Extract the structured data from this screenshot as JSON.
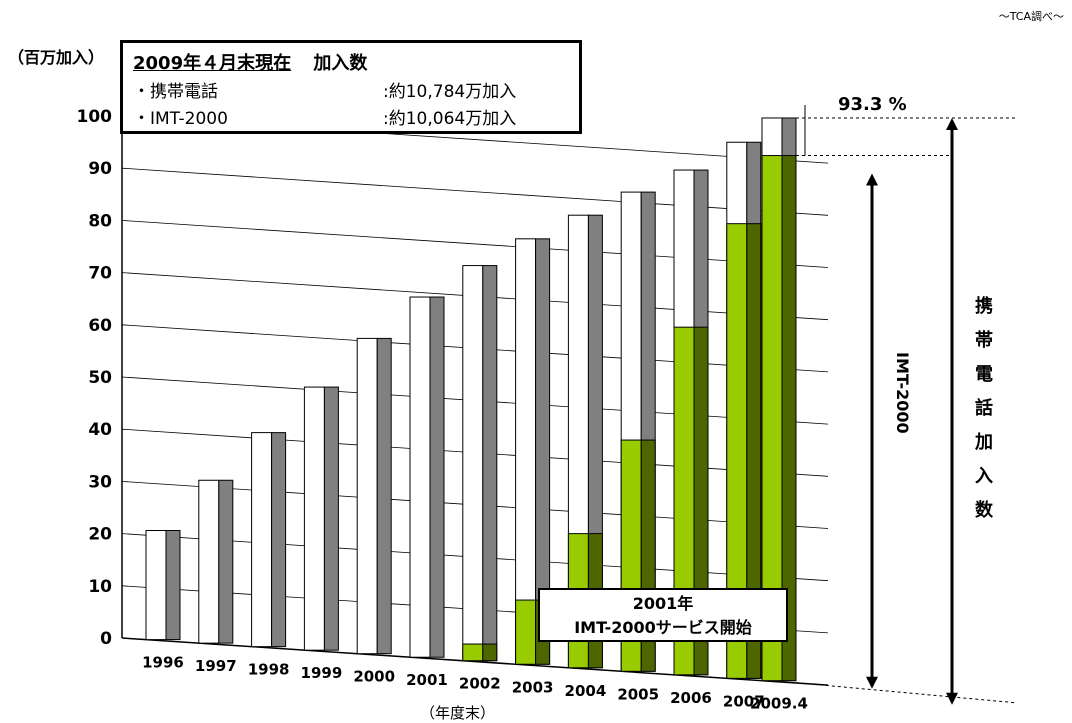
{
  "source_note": "〜TCA調べ〜",
  "unit_label": "（百万加入）",
  "info_box": {
    "date": "2009年４月末現在",
    "heading": "加入数",
    "rows": [
      {
        "label": "・携帯電話",
        "value": ":約10,784万加入"
      },
      {
        "label": "・IMT-2000",
        "value": ":約10,064万加入"
      }
    ]
  },
  "annotation": {
    "line1": "2001年",
    "line2": "IMT-2000サービス開始"
  },
  "percent_label": "93.3 %",
  "imt_label": "IMT-2000",
  "vertical_label": "携帯電話加入数",
  "x_unit_label": "（年度末）",
  "colors": {
    "total": "#ffffff",
    "total_side": "#808080",
    "imt": "#99cc00",
    "imt_side": "#4d6600"
  },
  "chart_data": {
    "type": "bar",
    "categories": [
      "1996",
      "1997",
      "1998",
      "1999",
      "2000",
      "2001",
      "2002",
      "2003",
      "2004",
      "2005",
      "2006",
      "2007",
      "2009.4"
    ],
    "series": [
      {
        "name": "携帯電話",
        "values": [
          20.9,
          31.2,
          41.0,
          50.4,
          60.4,
          69.0,
          75.7,
          81.5,
          86.7,
          91.8,
          96.7,
          102.7,
          107.8
        ]
      },
      {
        "name": "IMT-2000",
        "values": [
          0,
          0,
          0,
          0,
          0,
          0,
          3.2,
          12.3,
          25.7,
          44.3,
          66.6,
          87.1,
          100.6
        ]
      }
    ],
    "yticks": [
      0,
      10,
      20,
      30,
      40,
      50,
      60,
      70,
      80,
      90,
      100
    ],
    "ylim": [
      0,
      108
    ]
  }
}
